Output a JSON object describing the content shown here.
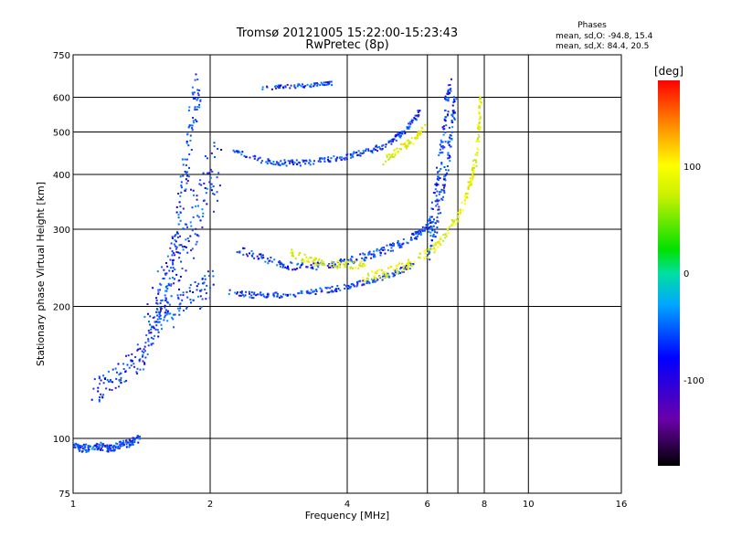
{
  "chart_data": {
    "type": "scatter",
    "title": "Tromsø 20121005 15:22:00-15:23:43",
    "subtitle": "RwPretec (8p)",
    "stats": {
      "heading": "Phases",
      "line_o": "mean, sd,O: -94.8, 15.4",
      "line_x": "mean, sd,X: 84.4, 20.5"
    },
    "xlabel": "Frequency [MHz]",
    "ylabel": "Stationary phase Virtual Height [km]",
    "x_scale": "log",
    "y_scale": "log",
    "xlim": [
      1,
      16
    ],
    "ylim": [
      75,
      750
    ],
    "x_ticks": [
      1,
      2,
      4,
      6,
      8,
      10,
      16
    ],
    "x_tick_labels": [
      "1",
      "2",
      "4",
      "6",
      "8",
      "10",
      "16"
    ],
    "x_grid": [
      2,
      4,
      6,
      7,
      8,
      10
    ],
    "y_ticks": [
      75,
      100,
      200,
      300,
      400,
      500,
      600,
      750
    ],
    "y_tick_labels": [
      "75",
      "100",
      "200",
      "300",
      "400",
      "500",
      "600",
      "750"
    ],
    "y_grid": [
      100,
      200,
      300,
      400,
      500,
      600
    ],
    "grid": true,
    "colorbar": {
      "label": "[deg]",
      "range": [
        -180,
        180
      ],
      "ticks": [
        100,
        0,
        -100
      ],
      "tick_labels": [
        "100",
        "0",
        "-100"
      ],
      "colormap": "rainbow: black-violet-blue-cyan-green-yellow-orange-red"
    },
    "series": [
      {
        "mode": "O",
        "phase": -95,
        "traces": [
          {
            "points": [
              [
                1.0,
                96
              ],
              [
                1.05,
                95
              ],
              [
                1.1,
                95
              ],
              [
                1.15,
                96
              ],
              [
                1.2,
                95
              ],
              [
                1.25,
                96
              ],
              [
                1.3,
                97
              ],
              [
                1.35,
                98
              ],
              [
                1.4,
                100
              ]
            ],
            "spread": 0.02
          },
          {
            "points": [
              [
                1.12,
                130
              ],
              [
                1.2,
                136
              ],
              [
                1.28,
                140
              ],
              [
                1.38,
                150
              ],
              [
                1.45,
                160
              ],
              [
                1.52,
                180
              ],
              [
                1.58,
                205
              ],
              [
                1.64,
                240
              ],
              [
                1.7,
                290
              ],
              [
                1.75,
                380
              ],
              [
                1.8,
                470
              ],
              [
                1.85,
                570
              ],
              [
                1.88,
                640
              ]
            ],
            "spread": 0.07
          },
          {
            "points": [
              [
                1.5,
                200
              ],
              [
                1.6,
                230
              ],
              [
                1.7,
                260
              ],
              [
                1.8,
                300
              ],
              [
                1.9,
                340
              ],
              [
                2.0,
                380
              ],
              [
                2.05,
                440
              ]
            ],
            "spread": 0.12
          },
          {
            "points": [
              [
                1.45,
                175
              ],
              [
                1.6,
                190
              ],
              [
                1.75,
                200
              ],
              [
                1.9,
                215
              ],
              [
                2.0,
                230
              ]
            ],
            "spread": 0.08
          },
          {
            "points": [
              [
                2.2,
                215
              ],
              [
                2.5,
                212
              ],
              [
                2.8,
                212
              ],
              [
                3.2,
                214
              ],
              [
                3.6,
                218
              ],
              [
                4.0,
                222
              ],
              [
                4.4,
                227
              ],
              [
                4.8,
                233
              ],
              [
                5.2,
                240
              ],
              [
                5.6,
                250
              ]
            ],
            "spread": 0.015
          },
          {
            "points": [
              [
                2.3,
                270
              ],
              [
                2.6,
                258
              ],
              [
                2.9,
                248
              ],
              [
                3.3,
                246
              ],
              [
                3.7,
                250
              ],
              [
                4.1,
                255
              ],
              [
                4.5,
                262
              ],
              [
                4.9,
                270
              ],
              [
                5.3,
                280
              ],
              [
                5.7,
                292
              ],
              [
                6.0,
                305
              ]
            ],
            "spread": 0.02
          },
          {
            "points": [
              [
                2.25,
                455
              ],
              [
                2.6,
                430
              ],
              [
                2.9,
                425
              ],
              [
                3.2,
                425
              ],
              [
                3.6,
                432
              ],
              [
                4.0,
                440
              ],
              [
                4.4,
                450
              ],
              [
                4.8,
                465
              ],
              [
                5.2,
                490
              ],
              [
                5.5,
                520
              ],
              [
                5.8,
                560
              ]
            ],
            "spread": 0.015
          },
          {
            "points": [
              [
                2.6,
                630
              ],
              [
                3.0,
                635
              ],
              [
                3.4,
                640
              ],
              [
                3.7,
                645
              ]
            ],
            "spread": 0.01
          },
          {
            "points": [
              [
                6.05,
                300
              ],
              [
                6.2,
                340
              ],
              [
                6.35,
                400
              ],
              [
                6.5,
                480
              ],
              [
                6.6,
                560
              ],
              [
                6.7,
                640
              ]
            ],
            "spread": 0.04
          },
          {
            "points": [
              [
                6.0,
                260
              ],
              [
                6.25,
                300
              ],
              [
                6.45,
                360
              ],
              [
                6.65,
                430
              ],
              [
                6.8,
                520
              ],
              [
                6.9,
                600
              ]
            ],
            "spread": 0.03
          }
        ]
      },
      {
        "mode": "X",
        "phase": 84,
        "traces": [
          {
            "points": [
              [
                4.3,
                232
              ],
              [
                4.8,
                238
              ],
              [
                5.3,
                246
              ],
              [
                5.8,
                258
              ],
              [
                6.3,
                275
              ],
              [
                6.8,
                305
              ],
              [
                7.2,
                340
              ],
              [
                7.5,
                390
              ],
              [
                7.7,
                440
              ],
              [
                7.8,
                520
              ],
              [
                7.85,
                600
              ]
            ],
            "spread": 0.025
          },
          {
            "points": [
              [
                4.8,
                430
              ],
              [
                5.2,
                455
              ],
              [
                5.6,
                480
              ],
              [
                5.9,
                510
              ]
            ],
            "spread": 0.02
          },
          {
            "points": [
              [
                3.0,
                265
              ],
              [
                3.3,
                255
              ],
              [
                3.6,
                250
              ],
              [
                4.0,
                248
              ],
              [
                4.4,
                250
              ]
            ],
            "spread": 0.02
          }
        ]
      }
    ]
  }
}
